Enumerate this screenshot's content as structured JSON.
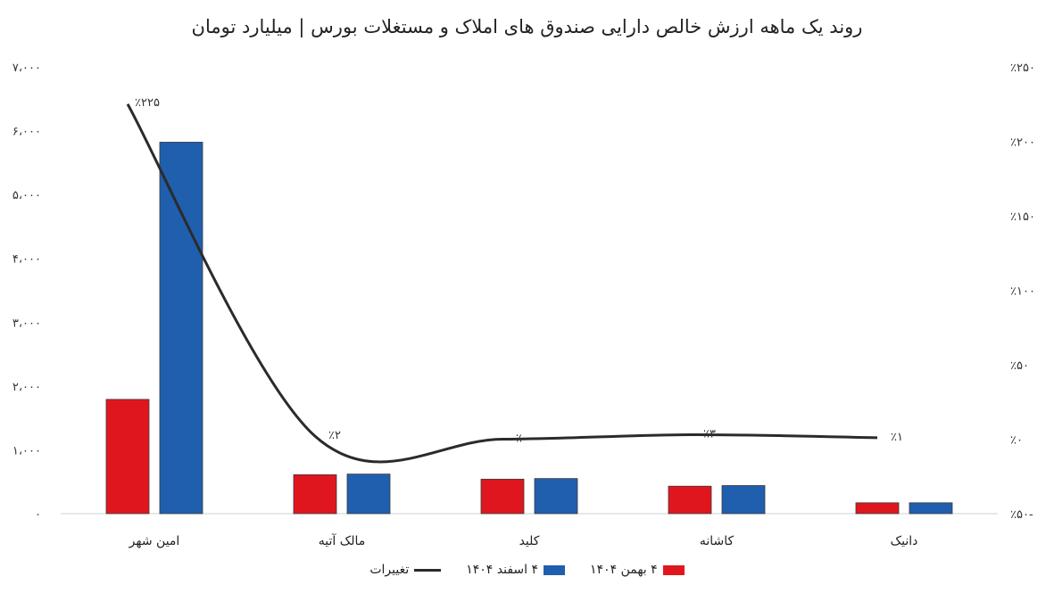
{
  "chart_data": {
    "type": "bar",
    "title": "روند یک ماهه ارزش خالص دارایی صندوق های املاک و مستغلات بورس | میلیارد تومان",
    "categories": [
      "امین شهر",
      "مالک آتیه",
      "کلید",
      "کاشانه",
      "دانیک"
    ],
    "series": [
      {
        "name": "۴ بهمن ۱۴۰۴",
        "color": "#e0161e",
        "values": [
          1790,
          610,
          540,
          430,
          170
        ]
      },
      {
        "name": "۴ اسفند ۱۴۰۴",
        "color": "#1f5fad",
        "values": [
          5820,
          620,
          550,
          440,
          170
        ]
      },
      {
        "name": "تغییرات",
        "color": "#2b2b2b",
        "axis": "right",
        "type": "line",
        "values": [
          225,
          2,
          0,
          3,
          1
        ]
      }
    ],
    "change_labels": [
      "٪۲۲۵",
      "٪۲",
      "٪۰",
      "٪۳",
      "٪۱"
    ],
    "ylim": [
      0,
      7000
    ],
    "y_ticks": [
      0,
      1000,
      2000,
      3000,
      4000,
      5000,
      6000,
      7000
    ],
    "y_tick_labels": [
      "۰",
      "۱،۰۰۰",
      "۲،۰۰۰",
      "۳،۰۰۰",
      "۴،۰۰۰",
      "۵،۰۰۰",
      "۶،۰۰۰",
      "۷،۰۰۰"
    ],
    "y2lim": [
      -50,
      250
    ],
    "y2_ticks": [
      -50,
      0,
      50,
      100,
      150,
      200,
      250
    ],
    "y2_tick_labels": [
      "٪۵۰-",
      "٪۰",
      "٪۵۰",
      "٪۱۰۰",
      "٪۱۵۰",
      "٪۲۰۰",
      "٪۲۵۰"
    ],
    "legend_position": "bottom",
    "grid": false
  }
}
